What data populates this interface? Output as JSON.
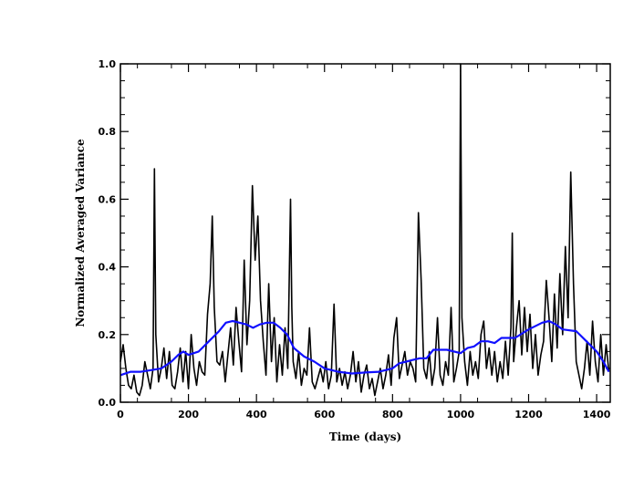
{
  "chart_data": {
    "type": "line",
    "xlabel": "Time (days)",
    "ylabel": "Normalized Averaged Variance",
    "xlim": [
      0,
      1440
    ],
    "ylim": [
      0.0,
      1.0
    ],
    "x_ticks": [
      0,
      200,
      400,
      600,
      800,
      1000,
      1200,
      1400
    ],
    "y_ticks": [
      0.0,
      0.2,
      0.4,
      0.6,
      0.8,
      1.0
    ],
    "x_tick_labels": [
      "0",
      "200",
      "400",
      "600",
      "800",
      "1000",
      "1200",
      "1400"
    ],
    "y_tick_labels": [
      "0.0",
      "0.2",
      "0.4",
      "0.6",
      "0.8",
      "1.0"
    ],
    "grid": false,
    "legend": "none",
    "series": [
      {
        "color": "#000000",
        "x": [
          0,
          8,
          16,
          24,
          32,
          40,
          48,
          56,
          64,
          72,
          80,
          88,
          96,
          100,
          104,
          112,
          120,
          128,
          136,
          144,
          152,
          160,
          168,
          176,
          184,
          192,
          200,
          208,
          216,
          224,
          232,
          240,
          248,
          256,
          264,
          270,
          276,
          284,
          292,
          300,
          308,
          316,
          324,
          332,
          340,
          348,
          356,
          364,
          372,
          380,
          388,
          396,
          404,
          412,
          420,
          428,
          436,
          444,
          452,
          460,
          468,
          476,
          484,
          492,
          500,
          504,
          508,
          516,
          524,
          532,
          540,
          548,
          556,
          564,
          572,
          580,
          588,
          596,
          604,
          612,
          620,
          628,
          636,
          644,
          652,
          660,
          668,
          676,
          684,
          692,
          700,
          708,
          716,
          724,
          732,
          740,
          748,
          756,
          764,
          772,
          780,
          788,
          796,
          804,
          812,
          820,
          828,
          836,
          844,
          852,
          860,
          868,
          876,
          884,
          892,
          900,
          908,
          916,
          924,
          932,
          940,
          948,
          956,
          964,
          972,
          980,
          988,
          996,
          1000,
          1004,
          1012,
          1020,
          1028,
          1036,
          1044,
          1052,
          1060,
          1068,
          1076,
          1084,
          1092,
          1100,
          1108,
          1116,
          1124,
          1132,
          1140,
          1148,
          1152,
          1156,
          1164,
          1172,
          1180,
          1188,
          1196,
          1204,
          1212,
          1220,
          1228,
          1236,
          1244,
          1252,
          1260,
          1268,
          1276,
          1284,
          1292,
          1300,
          1308,
          1316,
          1324,
          1332,
          1340,
          1348,
          1356,
          1364,
          1372,
          1380,
          1388,
          1396,
          1404,
          1412,
          1420,
          1428,
          1436
        ],
        "y": [
          0.12,
          0.17,
          0.1,
          0.05,
          0.04,
          0.08,
          0.03,
          0.02,
          0.05,
          0.12,
          0.08,
          0.04,
          0.1,
          0.69,
          0.2,
          0.06,
          0.1,
          0.16,
          0.07,
          0.15,
          0.05,
          0.04,
          0.09,
          0.16,
          0.06,
          0.15,
          0.04,
          0.2,
          0.1,
          0.05,
          0.12,
          0.09,
          0.08,
          0.26,
          0.35,
          0.55,
          0.28,
          0.12,
          0.11,
          0.15,
          0.06,
          0.14,
          0.22,
          0.11,
          0.28,
          0.18,
          0.09,
          0.42,
          0.17,
          0.3,
          0.64,
          0.42,
          0.55,
          0.3,
          0.18,
          0.08,
          0.35,
          0.12,
          0.25,
          0.06,
          0.17,
          0.08,
          0.22,
          0.1,
          0.6,
          0.28,
          0.12,
          0.07,
          0.15,
          0.05,
          0.1,
          0.08,
          0.22,
          0.06,
          0.04,
          0.07,
          0.1,
          0.06,
          0.12,
          0.04,
          0.08,
          0.29,
          0.06,
          0.1,
          0.05,
          0.09,
          0.04,
          0.08,
          0.15,
          0.06,
          0.12,
          0.03,
          0.08,
          0.11,
          0.04,
          0.07,
          0.02,
          0.06,
          0.1,
          0.04,
          0.08,
          0.14,
          0.05,
          0.19,
          0.25,
          0.07,
          0.11,
          0.15,
          0.08,
          0.12,
          0.1,
          0.06,
          0.56,
          0.36,
          0.1,
          0.07,
          0.15,
          0.05,
          0.1,
          0.25,
          0.08,
          0.05,
          0.12,
          0.08,
          0.28,
          0.06,
          0.1,
          0.15,
          1.0,
          0.25,
          0.12,
          0.05,
          0.15,
          0.08,
          0.12,
          0.07,
          0.2,
          0.24,
          0.1,
          0.16,
          0.08,
          0.15,
          0.06,
          0.12,
          0.07,
          0.18,
          0.08,
          0.22,
          0.5,
          0.12,
          0.22,
          0.3,
          0.14,
          0.28,
          0.15,
          0.26,
          0.1,
          0.2,
          0.08,
          0.14,
          0.18,
          0.36,
          0.25,
          0.12,
          0.32,
          0.16,
          0.38,
          0.2,
          0.46,
          0.25,
          0.68,
          0.35,
          0.12,
          0.08,
          0.04,
          0.1,
          0.18,
          0.08,
          0.24,
          0.12,
          0.06,
          0.2,
          0.08,
          0.17,
          0.09
        ]
      },
      {
        "color": "#1010ff",
        "x": [
          0,
          30,
          60,
          90,
          120,
          150,
          170,
          185,
          200,
          230,
          260,
          290,
          310,
          330,
          350,
          370,
          390,
          410,
          430,
          450,
          470,
          490,
          510,
          540,
          570,
          600,
          640,
          680,
          720,
          760,
          800,
          820,
          840,
          860,
          880,
          900,
          920,
          960,
          1000,
          1020,
          1040,
          1060,
          1080,
          1100,
          1120,
          1160,
          1200,
          1240,
          1260,
          1280,
          1300,
          1340,
          1370,
          1400,
          1420,
          1436
        ],
        "y": [
          0.08,
          0.09,
          0.09,
          0.095,
          0.1,
          0.12,
          0.14,
          0.15,
          0.14,
          0.15,
          0.18,
          0.21,
          0.235,
          0.24,
          0.235,
          0.23,
          0.22,
          0.23,
          0.235,
          0.235,
          0.22,
          0.2,
          0.16,
          0.135,
          0.12,
          0.1,
          0.09,
          0.085,
          0.088,
          0.09,
          0.1,
          0.115,
          0.12,
          0.125,
          0.13,
          0.13,
          0.155,
          0.155,
          0.145,
          0.16,
          0.165,
          0.18,
          0.18,
          0.175,
          0.19,
          0.19,
          0.215,
          0.235,
          0.24,
          0.23,
          0.215,
          0.21,
          0.18,
          0.15,
          0.12,
          0.09
        ]
      }
    ]
  }
}
